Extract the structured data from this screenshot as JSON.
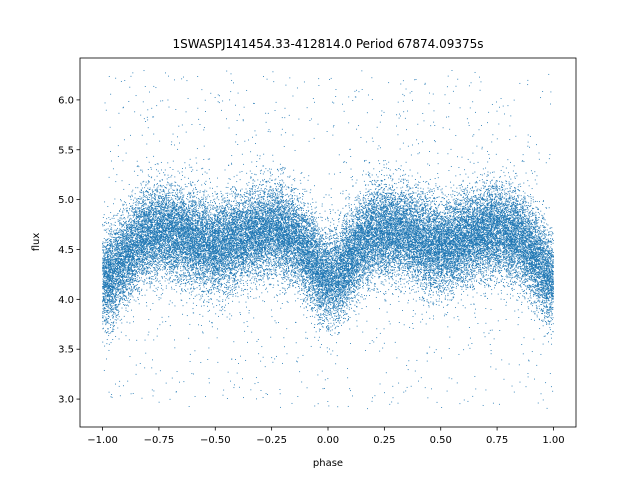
{
  "chart_data": {
    "type": "scatter",
    "title": "1SWASPJ141454.33-412814.0 Period 67874.09375s",
    "xlabel": "phase",
    "ylabel": "flux",
    "xlim": [
      -1.1,
      1.1
    ],
    "ylim": [
      2.72,
      6.42
    ],
    "xticks": [
      -1.0,
      -0.75,
      -0.5,
      -0.25,
      0.0,
      0.25,
      0.5,
      0.75,
      1.0
    ],
    "xtick_labels": [
      "−1.00",
      "−0.75",
      "−0.50",
      "−0.25",
      "0.00",
      "0.25",
      "0.50",
      "0.75",
      "1.00"
    ],
    "yticks": [
      3.0,
      3.5,
      4.0,
      4.5,
      5.0,
      5.5,
      6.0
    ],
    "ytick_labels": [
      "3.0",
      "3.5",
      "4.0",
      "4.5",
      "5.0",
      "5.5",
      "6.0"
    ],
    "grid": false,
    "marker_color": "#1f77b4",
    "series": [
      {
        "x_range": [
          -1.0,
          1.0
        ],
        "point_count_approx": 40000,
        "phase_fold_period": 1.0,
        "light_curve_profile": [
          {
            "phase": 0.0,
            "flux_mean": 4.2
          },
          {
            "phase": 0.05,
            "flux_mean": 4.25
          },
          {
            "phase": 0.1,
            "flux_mean": 4.42
          },
          {
            "phase": 0.18,
            "flux_mean": 4.63
          },
          {
            "phase": 0.25,
            "flux_mean": 4.7
          },
          {
            "phase": 0.32,
            "flux_mean": 4.68
          },
          {
            "phase": 0.4,
            "flux_mean": 4.6
          },
          {
            "phase": 0.45,
            "flux_mean": 4.55
          },
          {
            "phase": 0.5,
            "flux_mean": 4.52
          },
          {
            "phase": 0.55,
            "flux_mean": 4.55
          },
          {
            "phase": 0.62,
            "flux_mean": 4.62
          },
          {
            "phase": 0.7,
            "flux_mean": 4.68
          },
          {
            "phase": 0.78,
            "flux_mean": 4.7
          },
          {
            "phase": 0.85,
            "flux_mean": 4.62
          },
          {
            "phase": 0.92,
            "flux_mean": 4.42
          },
          {
            "phase": 0.97,
            "flux_mean": 4.25
          },
          {
            "phase": 1.0,
            "flux_mean": 4.2
          }
        ],
        "scatter_sigma": 0.23,
        "outlier_range": [
          2.9,
          6.3
        ]
      }
    ]
  }
}
